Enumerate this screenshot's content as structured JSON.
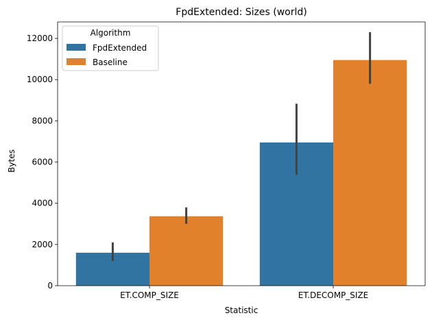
{
  "chart_data": {
    "type": "bar",
    "title": "FpdExtended: Sizes (world)",
    "xlabel": "Statistic",
    "ylabel": "Bytes",
    "categories": [
      "ET.COMP_SIZE",
      "ET.DECOMP_SIZE"
    ],
    "ylim": [
      0,
      12800
    ],
    "yticks": [
      0,
      2000,
      4000,
      6000,
      8000,
      10000,
      12000
    ],
    "grid": false,
    "legend": {
      "title": "Algorithm",
      "placement": "top-left"
    },
    "series": [
      {
        "name": "FpdExtended",
        "color": "#3274a1",
        "values": [
          1600,
          6950
        ],
        "error_low": [
          1200,
          5380
        ],
        "error_high": [
          2100,
          8830
        ]
      },
      {
        "name": "Baseline",
        "color": "#e1812c",
        "values": [
          3370,
          10950
        ],
        "error_low": [
          3000,
          9800
        ],
        "error_high": [
          3800,
          12300
        ]
      }
    ],
    "error_bar_color": "#424242"
  }
}
